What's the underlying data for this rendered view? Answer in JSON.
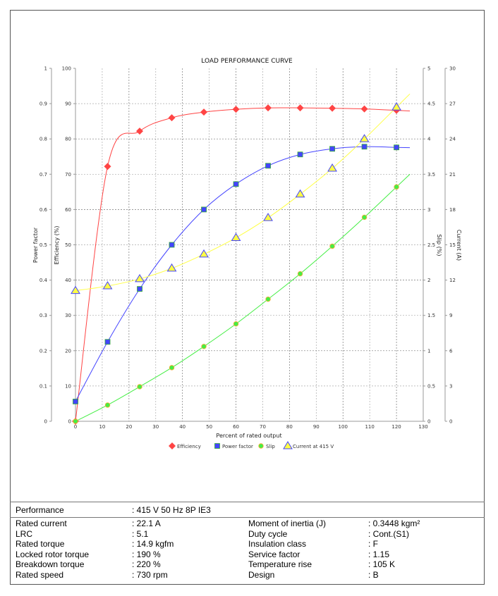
{
  "chart_data": {
    "type": "line",
    "title": "LOAD PERFORMANCE CURVE",
    "xlabel": "Percent of rated output",
    "xlim": [
      0,
      130
    ],
    "xticks": [
      0,
      10,
      20,
      30,
      40,
      50,
      60,
      70,
      80,
      90,
      100,
      110,
      120,
      130
    ],
    "grid": true,
    "legend_placement": "bottom",
    "axes": {
      "power_factor": {
        "label": "Power factor",
        "range": [
          0,
          1
        ],
        "ticks": [
          "0",
          "0.1",
          "0.2",
          "0.3",
          "0.4",
          "0.5",
          "0.6",
          "0.7",
          "0.8",
          "0.9",
          "1"
        ],
        "side": "left-outer"
      },
      "efficiency": {
        "label": "Efficiency (%)",
        "range": [
          0,
          100
        ],
        "ticks": [
          "0",
          "10",
          "20",
          "30",
          "40",
          "50",
          "60",
          "70",
          "80",
          "90",
          "100"
        ],
        "side": "left-inner"
      },
      "slip": {
        "label": "Slip (%)",
        "range": [
          0,
          5
        ],
        "ticks": [
          "0",
          "0.5",
          "1",
          "1.5",
          "2",
          "2.5",
          "3",
          "3.5",
          "4",
          "4.5",
          "5"
        ],
        "side": "right-inner"
      },
      "current": {
        "label": "Current (A)",
        "range": [
          0,
          30
        ],
        "ticks": [
          "0",
          "3",
          "6",
          "9",
          "12",
          "15",
          "18",
          "21",
          "24",
          "27",
          "30"
        ],
        "side": "right-outer"
      }
    },
    "x": [
      0,
      12,
      24,
      36,
      48,
      60,
      72,
      84,
      96,
      108,
      120
    ],
    "series": [
      {
        "name": "Efficiency",
        "axis": "efficiency",
        "color": "#ff4444",
        "marker": "diamond",
        "values": [
          0,
          72.2,
          82.2,
          86.0,
          87.6,
          88.4,
          88.8,
          88.8,
          88.7,
          88.5,
          88.1
        ]
      },
      {
        "name": "Power factor",
        "axis": "power_factor",
        "color": "#4444ff",
        "marker": "square",
        "values": [
          0.056,
          0.225,
          0.375,
          0.5,
          0.6,
          0.672,
          0.724,
          0.756,
          0.772,
          0.778,
          0.776
        ]
      },
      {
        "name": "Slip",
        "axis": "slip",
        "color": "#44ee44",
        "marker": "circle",
        "values": [
          0,
          0.23,
          0.49,
          0.76,
          1.06,
          1.38,
          1.73,
          2.09,
          2.48,
          2.89,
          3.32
        ]
      },
      {
        "name": "Current at 415 V",
        "axis": "current",
        "color": "#ffff44",
        "marker": "triangle",
        "values": [
          11.1,
          11.5,
          12.1,
          13.0,
          14.2,
          15.6,
          17.3,
          19.3,
          21.5,
          24.0,
          26.7
        ]
      }
    ]
  },
  "specs": {
    "performance": {
      "label": "Performance",
      "value": ": 415 V 50 Hz 8P IE3"
    },
    "left": [
      {
        "label": "Rated current",
        "value": ": 22.1 A"
      },
      {
        "label": "LRC",
        "value": ": 5.1"
      },
      {
        "label": "Rated torque",
        "value": ": 14.9 kgfm"
      },
      {
        "label": "Locked rotor torque",
        "value": ": 190 %"
      },
      {
        "label": "Breakdown torque",
        "value": ": 220 %"
      },
      {
        "label": "Rated speed",
        "value": ": 730 rpm"
      }
    ],
    "right": [
      {
        "label": "Moment of inertia (J)",
        "value": ": 0.3448 kgm²"
      },
      {
        "label": "Duty cycle",
        "value": ": Cont.(S1)"
      },
      {
        "label": "Insulation class",
        "value": ": F"
      },
      {
        "label": "Service factor",
        "value": ": 1.15"
      },
      {
        "label": "Temperature rise",
        "value": ": 105 K"
      },
      {
        "label": "Design",
        "value": ": B"
      }
    ]
  }
}
